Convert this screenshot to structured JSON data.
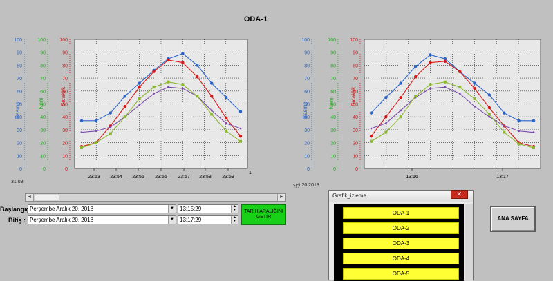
{
  "title": "ODA-1",
  "colors": {
    "pressure": "#2a64c8",
    "humidity": "#18b418",
    "temperature": "#d81818",
    "purple": "#7a4aa8",
    "olive": "#8cb830",
    "grid_bg": "#e8e8e8"
  },
  "left_chart": {
    "axis_titles": {
      "pressure": "Basınç",
      "humidity": "Nem",
      "temperature": "Sıcaklık"
    },
    "pressure_ticks": [
      "100",
      "90",
      "80",
      "70",
      "60",
      "50",
      "40",
      "30",
      "20",
      "10",
      "0"
    ],
    "humidity_ticks": [
      "100",
      "90",
      "80",
      "70",
      "60",
      "50",
      "40",
      "30",
      "20",
      "10",
      "0"
    ],
    "temp_ticks": [
      "100",
      "90",
      "80",
      "70",
      "60",
      "50",
      "40",
      "30",
      "20",
      "10",
      "0"
    ],
    "x_ticks": [
      "23:53",
      "23:54",
      "23:55",
      "23:56",
      "23:57",
      "23:58",
      "23:59"
    ],
    "x_end_label": "1",
    "date_prefix": "31.09"
  },
  "right_chart": {
    "axis_titles": {
      "pressure": "Basınç",
      "humidity": "Nem",
      "temperature": "Sıcaklık"
    },
    "pressure_ticks": [
      "100",
      "90",
      "80",
      "70",
      "60",
      "50",
      "40",
      "30",
      "20",
      "10",
      "0"
    ],
    "humidity_ticks": [
      "100",
      "90",
      "80",
      "70",
      "60",
      "50",
      "40",
      "30",
      "20",
      "10",
      "0"
    ],
    "temp_ticks": [
      "100",
      "90",
      "80",
      "70",
      "60",
      "50",
      "40",
      "30",
      "20",
      "10",
      "0"
    ],
    "x_ticks": [
      "13:16",
      "13:17"
    ],
    "date_prefix": "şýÿ 20 2018"
  },
  "chart_data": [
    {
      "type": "line",
      "x": [
        0,
        1,
        2,
        3,
        4,
        5,
        6,
        7,
        8,
        9,
        10,
        11
      ],
      "ylim": [
        0,
        100
      ],
      "series": [
        {
          "color": "#2a64c8",
          "values": [
            37,
            37,
            43,
            56,
            66,
            76,
            85,
            89,
            80,
            66,
            55,
            44
          ]
        },
        {
          "color": "#d81818",
          "values": [
            17,
            20,
            33,
            48,
            63,
            75,
            84,
            82,
            71,
            56,
            39,
            25
          ]
        },
        {
          "color": "#7a4aa8",
          "values": [
            28,
            29,
            32,
            40,
            49,
            58,
            63,
            62,
            56,
            45,
            35,
            31
          ]
        },
        {
          "color": "#8cb830",
          "values": [
            16,
            20,
            27,
            40,
            54,
            63,
            67,
            65,
            56,
            42,
            29,
            21
          ]
        }
      ]
    },
    {
      "type": "line",
      "x": [
        0,
        1,
        2,
        3,
        4,
        5,
        6,
        7,
        8,
        9,
        10,
        11
      ],
      "ylim": [
        0,
        100
      ],
      "series": [
        {
          "color": "#2a64c8",
          "values": [
            43,
            55,
            66,
            79,
            88,
            85,
            75,
            66,
            57,
            43,
            37,
            37
          ]
        },
        {
          "color": "#d81818",
          "values": [
            25,
            40,
            55,
            71,
            82,
            83,
            75,
            62,
            47,
            33,
            20,
            17
          ]
        },
        {
          "color": "#7a4aa8",
          "values": [
            31,
            35,
            45,
            55,
            62,
            63,
            58,
            48,
            40,
            33,
            29,
            28
          ]
        },
        {
          "color": "#8cb830",
          "values": [
            21,
            28,
            40,
            56,
            65,
            67,
            63,
            54,
            42,
            28,
            19,
            16
          ]
        }
      ]
    }
  ],
  "scrollbar": {
    "left_arrow": "◄",
    "right_arrow": "►"
  },
  "range": {
    "start_label": "Başlangıç:",
    "end_label": "Bitiş   :",
    "start_date": "Perşembe    Aralık    20, 2018",
    "end_date": "Perşembe    Aralık    20, 2018",
    "start_time": "13:15:29",
    "end_time": "13:17:29",
    "fetch_button": "TARİH ARALIĞINI GETİR"
  },
  "popup": {
    "title": "Grafik_izleme",
    "items": [
      "ODA-1",
      "ODA-2",
      "ODA-3",
      "ODA-4",
      "ODA-5"
    ]
  },
  "home_button": "ANA SAYFA"
}
